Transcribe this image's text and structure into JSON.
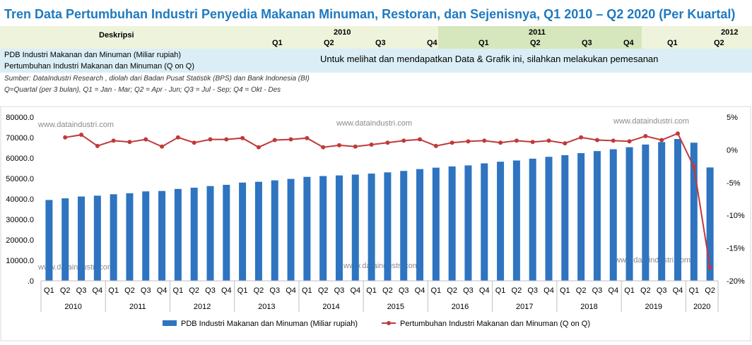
{
  "title": "Tren Data Pertumbuhan Industri Penyedia Makanan Minuman, Restoran, dan Sejenisnya, Q1 2010 – Q2 2020 (Per Kuartal)",
  "table": {
    "desc_label": "Deskripsi",
    "years": [
      "2010",
      "2011",
      "2012"
    ],
    "quarters": [
      "Q1",
      "Q2",
      "Q3",
      "Q4",
      "Q1",
      "Q2",
      "Q3",
      "Q4",
      "Q1",
      "Q2"
    ],
    "row1": "PDB Industri Makanan dan Minuman (Miliar rupiah)",
    "row2": "Pertumbuhan Industri Makanan dan Minuman (Q on Q)",
    "notice": "Untuk melihat dan mendapatkan Data & Grafik ini, silahkan melakukan pemesanan",
    "source": "Sumber: DataIndustri Research , diolah dari Badan Pusat Statistik (BPS) dan Bank Indonesia (BI)",
    "note": "Q=Quartal (per 3 bulan), Q1 = Jan - Mar; Q2 = Apr - Jun; Q3 = Jul - Sep; Q4 = Okt - Des"
  },
  "watermark": "www.dataindustri.com",
  "colors": {
    "bar": "#2e74c0",
    "line": "#c0393b",
    "title": "#1f7ac0"
  },
  "chart_data": {
    "type": "bar",
    "categories": [
      "Q1",
      "Q2",
      "Q3",
      "Q4",
      "Q1",
      "Q2",
      "Q3",
      "Q4",
      "Q1",
      "Q2",
      "Q3",
      "Q4",
      "Q1",
      "Q2",
      "Q3",
      "Q4",
      "Q1",
      "Q2",
      "Q3",
      "Q4",
      "Q1",
      "Q2",
      "Q3",
      "Q4",
      "Q1",
      "Q2",
      "Q3",
      "Q4",
      "Q1",
      "Q2",
      "Q3",
      "Q4",
      "Q1",
      "Q2",
      "Q3",
      "Q4",
      "Q1",
      "Q2",
      "Q3",
      "Q4",
      "Q1",
      "Q2"
    ],
    "years": [
      "2010",
      "2011",
      "2012",
      "2013",
      "2014",
      "2015",
      "2016",
      "2017",
      "2018",
      "2019",
      "2020"
    ],
    "series": [
      {
        "name": "PDB Industri Makanan dan Minuman (Miliar rupiah)",
        "axis": "left",
        "values": [
          39500,
          40300,
          41200,
          41600,
          42300,
          42800,
          43700,
          43900,
          44900,
          45500,
          46300,
          46900,
          48000,
          48400,
          49100,
          49800,
          50800,
          51200,
          51500,
          51900,
          52400,
          53000,
          53700,
          54600,
          55300,
          55900,
          56400,
          57400,
          58200,
          58800,
          59700,
          60600,
          61400,
          62400,
          63400,
          64300,
          65300,
          66600,
          67800,
          69300,
          67500,
          55400
        ]
      },
      {
        "name": "Pertumbuhan Industri Makanan dan Minuman (Q on Q)",
        "axis": "right",
        "values": [
          null,
          1.9,
          2.3,
          0.6,
          1.4,
          1.2,
          1.6,
          0.5,
          1.9,
          1.1,
          1.6,
          1.6,
          1.8,
          0.4,
          1.5,
          1.6,
          1.8,
          0.4,
          0.7,
          0.5,
          0.8,
          1.1,
          1.4,
          1.6,
          0.6,
          1.1,
          1.3,
          1.4,
          1.1,
          1.4,
          1.2,
          1.4,
          1.0,
          1.9,
          1.5,
          1.4,
          1.3,
          2.1,
          1.5,
          2.5,
          -2.6,
          -18.0
        ]
      }
    ],
    "y_left": {
      "min": 0,
      "max": 80000,
      "ticks": [
        "80000.0",
        "70000.0",
        "60000.0",
        "50000.0",
        "40000.0",
        "30000.0",
        "20000.0",
        "10000.0",
        ".0"
      ]
    },
    "y_right": {
      "min": -20,
      "max": 5,
      "ticks": [
        "5%",
        "0%",
        "-5%",
        "-10%",
        "-15%",
        "-20%"
      ]
    },
    "legend": "bottom"
  }
}
